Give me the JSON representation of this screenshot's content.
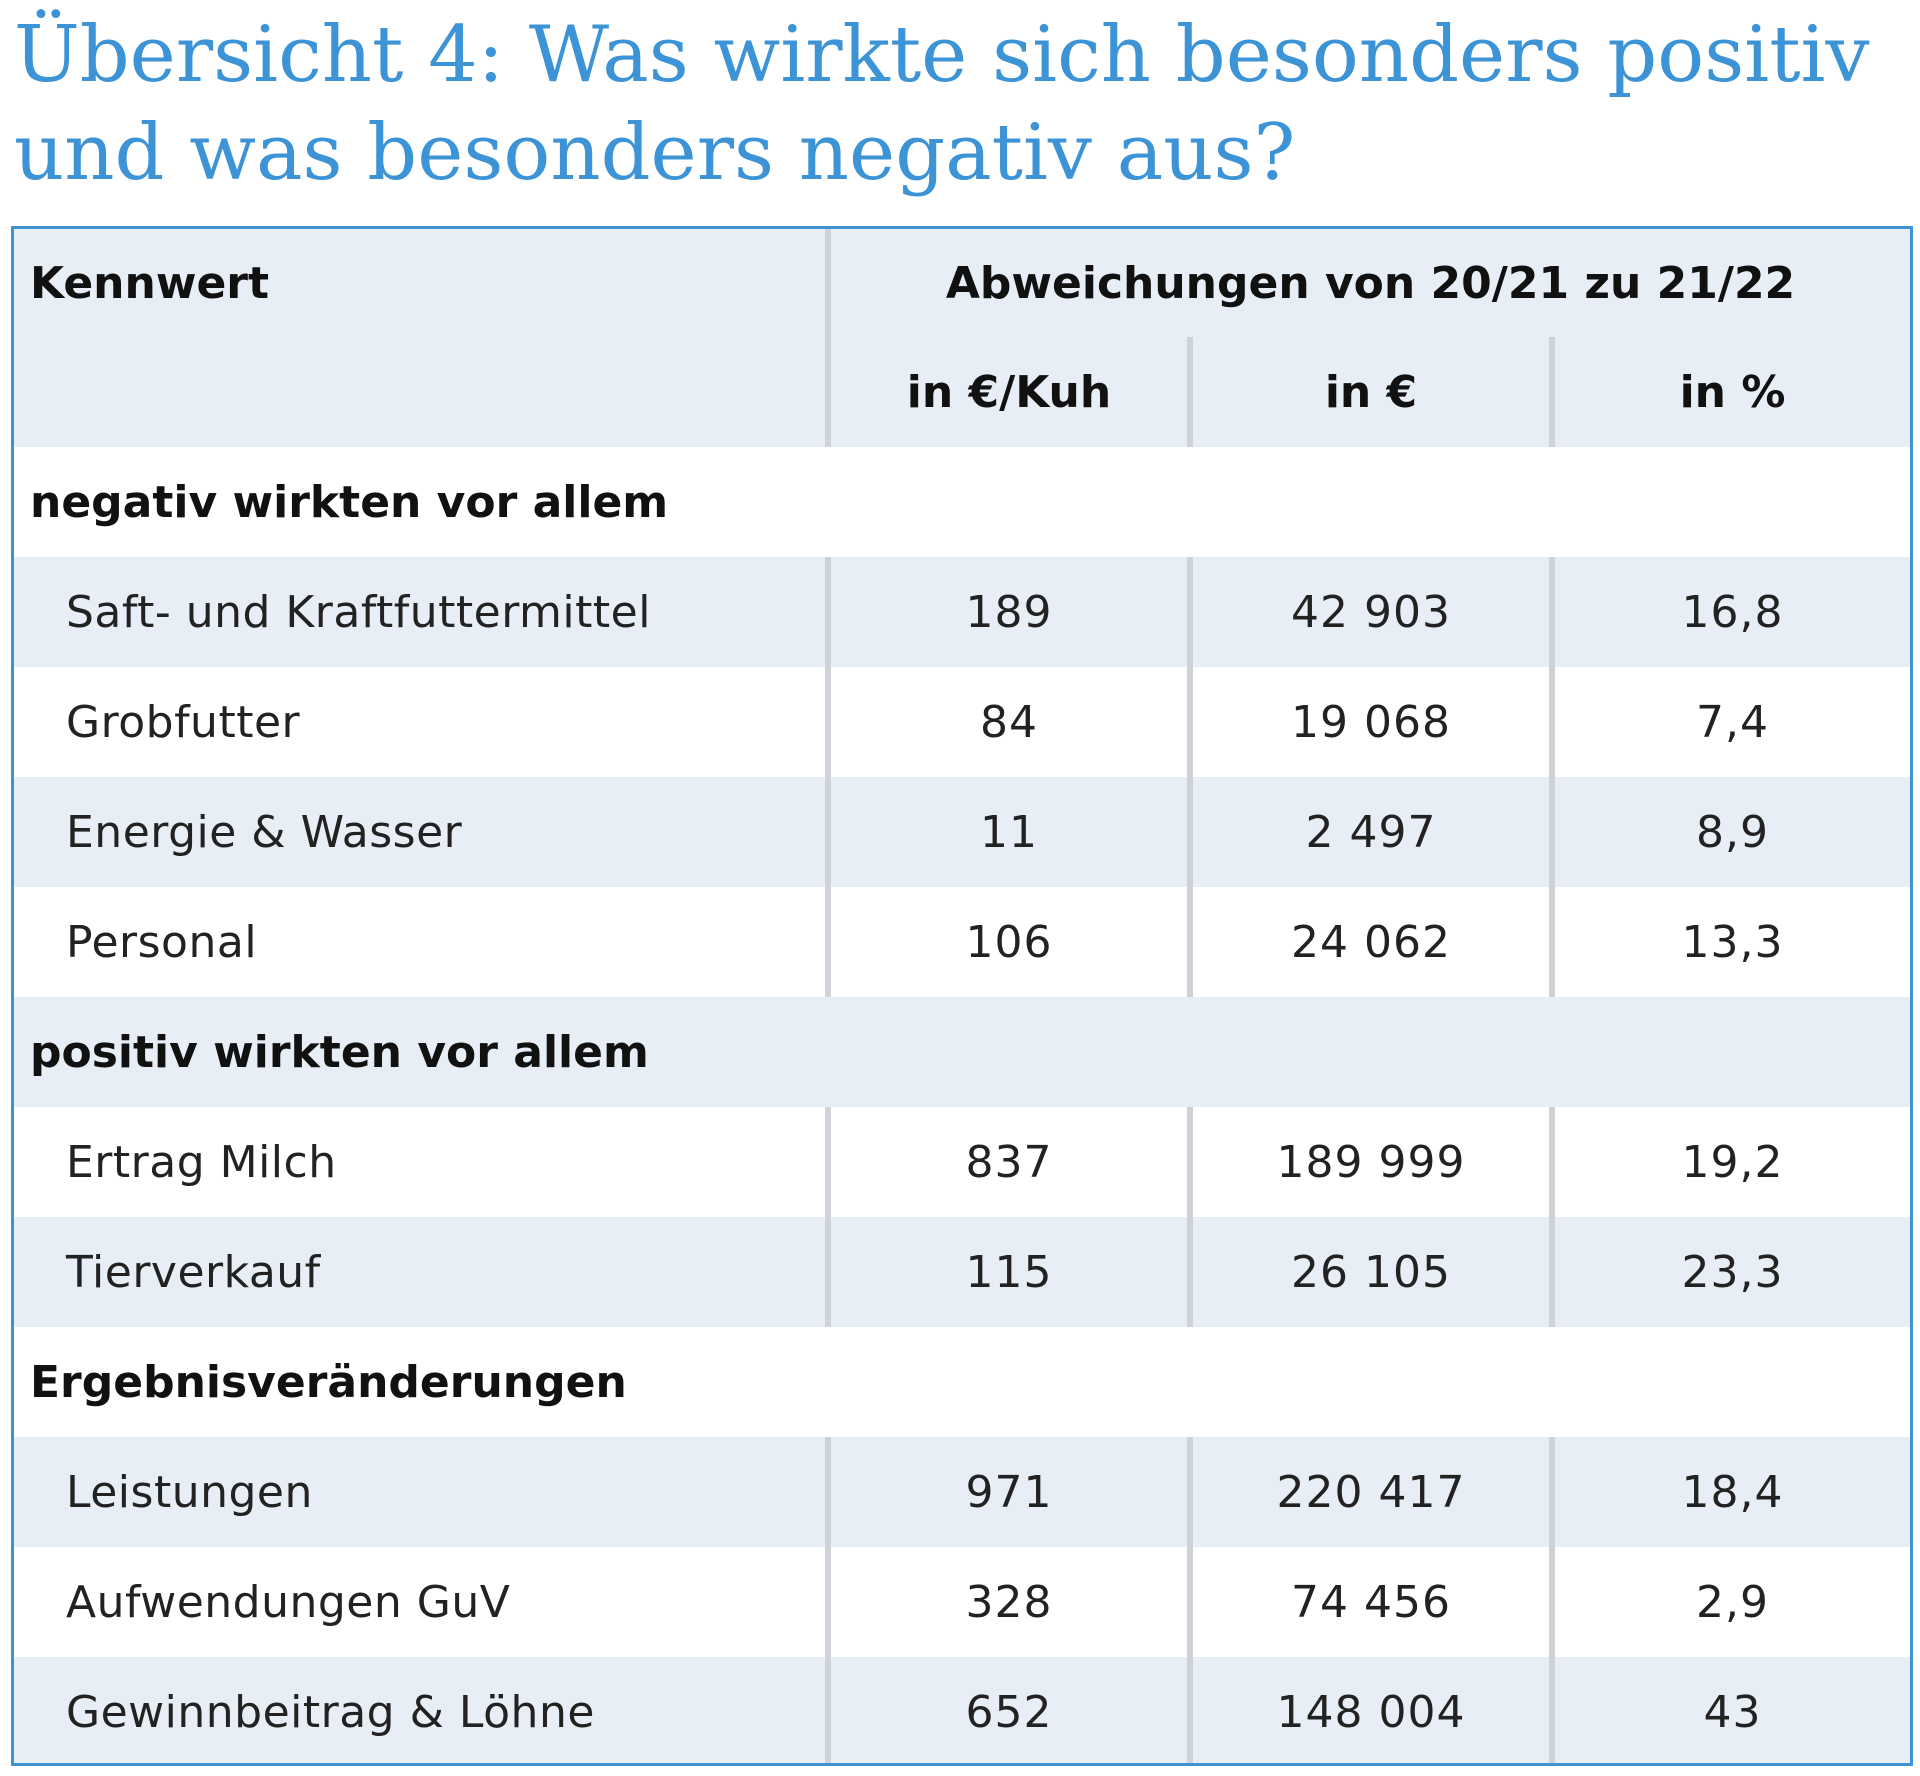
{
  "title": "Übersicht 4: Was wirkte sich besonders positiv\nund was besonders negativ aus?",
  "table": {
    "header": {
      "col_label": "Kennwert",
      "group_label": "Abweichungen von 20/21 zu 21/22",
      "units": [
        "in €/Kuh",
        "in €",
        "in %"
      ]
    },
    "sections": [
      {
        "title": "negativ wirkten vor allem",
        "rows": [
          {
            "label": "Saft- und Kraftfuttermittel",
            "per_cow": "189",
            "euro": "42 903",
            "percent": "16,8"
          },
          {
            "label": "Grobfutter",
            "per_cow": "84",
            "euro": "19 068",
            "percent": "7,4"
          },
          {
            "label": "Energie & Wasser",
            "per_cow": "11",
            "euro": "2 497",
            "percent": "8,9"
          },
          {
            "label": "Personal",
            "per_cow": "106",
            "euro": "24 062",
            "percent": "13,3"
          }
        ]
      },
      {
        "title": "positiv wirkten vor allem",
        "rows": [
          {
            "label": "Ertrag Milch",
            "per_cow": "837",
            "euro": "189 999",
            "percent": "19,2"
          },
          {
            "label": "Tierverkauf",
            "per_cow": "115",
            "euro": "26 105",
            "percent": "23,3"
          }
        ]
      },
      {
        "title": "Ergebnisveränderungen",
        "rows": [
          {
            "label": "Leistungen",
            "per_cow": "971",
            "euro": "220 417",
            "percent": "18,4"
          },
          {
            "label": "Aufwendungen GuV",
            "per_cow": "328",
            "euro": "74 456",
            "percent": "2,9"
          },
          {
            "label": "Gewinnbeitrag & Löhne",
            "per_cow": "652",
            "euro": "148 004",
            "percent": "43"
          }
        ]
      }
    ]
  },
  "colors": {
    "accent": "#3c93d6",
    "row_shade": "#e8eef5",
    "separator": "#cfd2d6"
  }
}
